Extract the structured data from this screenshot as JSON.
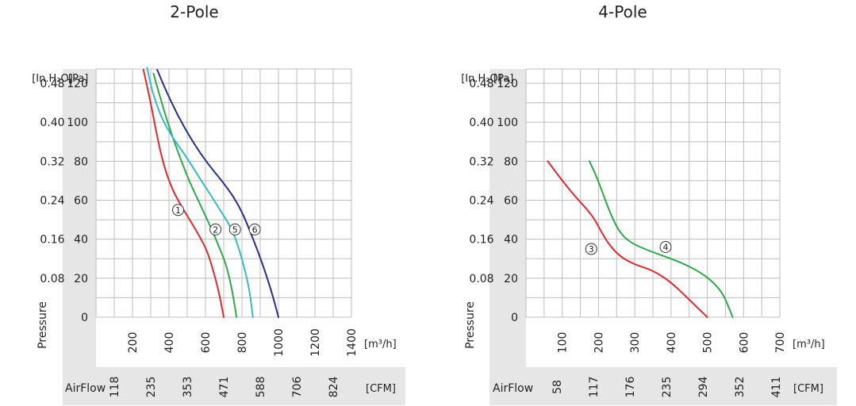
{
  "chart_data": [
    {
      "type": "line",
      "title": "2-Pole",
      "y_inh2o_label": "[In.H₂O]",
      "y_pa_label": "[Pa]",
      "ylabel": "Pressure",
      "x_m3h_unit": "[m³/h]",
      "x_cfm_label": "AirFlow",
      "x_cfm_unit": "[CFM]",
      "xlim": [
        0,
        1400
      ],
      "ylim": [
        0,
        130
      ],
      "x_ticks_m3h": [
        "200",
        "400",
        "600",
        "800",
        "1000",
        "1200",
        "1400"
      ],
      "x_ticks_cfm": [
        "118",
        "235",
        "353",
        "471",
        "588",
        "706",
        "824"
      ],
      "y_ticks_pa": [
        "0",
        "20",
        "40",
        "60",
        "80",
        "100",
        "120"
      ],
      "y_ticks_inh2o": [
        "",
        "0.08",
        "0.16",
        "0.24",
        "0.32",
        "0.40",
        "0.48"
      ],
      "grid": true,
      "series": [
        {
          "marker": "①",
          "color": "#e0282e",
          "label_at": [
            450,
            55
          ],
          "x": [
            260,
            300,
            330,
            370,
            420,
            480,
            540,
            600,
            630,
            660,
            680,
            700
          ],
          "y": [
            127,
            110,
            95,
            78,
            65,
            55,
            46,
            36,
            28,
            18,
            10,
            0
          ]
        },
        {
          "marker": "②",
          "color": "#2ea84a",
          "label_at": [
            655,
            45
          ],
          "x": [
            315,
            360,
            410,
            460,
            510,
            560,
            620,
            680,
            720,
            750,
            770
          ],
          "y": [
            125,
            110,
            95,
            82,
            70,
            60,
            48,
            35,
            25,
            12,
            0
          ]
        },
        {
          "marker": "⑤",
          "color": "#33bdbd",
          "label_at": [
            762,
            45
          ],
          "x": [
            280,
            310,
            360,
            420,
            490,
            570,
            640,
            700,
            740,
            770,
            800,
            840,
            860
          ],
          "y": [
            128,
            115,
            102,
            92,
            83,
            71,
            61,
            52,
            46,
            39,
            30,
            15,
            0
          ]
        },
        {
          "marker": "⑥",
          "color": "#2a2f86",
          "label_at": [
            870,
            45
          ],
          "x": [
            335,
            380,
            450,
            530,
            610,
            690,
            760,
            810,
            840,
            870,
            910,
            960,
            1000
          ],
          "y": [
            127,
            117,
            103,
            90,
            79,
            70,
            61,
            52,
            45,
            38,
            28,
            14,
            0
          ]
        }
      ]
    },
    {
      "type": "line",
      "title": "4-Pole",
      "y_inh2o_label": "[In.H₂O]",
      "y_pa_label": "[Pa]",
      "ylabel": "Pressure",
      "x_m3h_unit": "[m³/h]",
      "x_cfm_label": "AirFlow",
      "x_cfm_unit": "[CFM]",
      "xlim": [
        0,
        700
      ],
      "ylim": [
        0,
        130
      ],
      "x_ticks_m3h": [
        "100",
        "200",
        "300",
        "400",
        "500",
        "600",
        "700"
      ],
      "x_ticks_cfm": [
        "58",
        "117",
        "176",
        "235",
        "294",
        "352",
        "411"
      ],
      "y_ticks_pa": [
        "0",
        "20",
        "40",
        "60",
        "80",
        "100",
        "120"
      ],
      "y_ticks_inh2o": [
        "",
        "0.08",
        "0.16",
        "0.24",
        "0.32",
        "0.40",
        "0.48"
      ],
      "grid": true,
      "series": [
        {
          "marker": "③",
          "color": "#e0282e",
          "label_at": [
            180,
            35
          ],
          "x": [
            60,
            100,
            140,
            170,
            190,
            210,
            230,
            260,
            300,
            350,
            400,
            450,
            500
          ],
          "y": [
            80,
            70,
            61,
            55,
            50,
            43,
            37,
            31,
            27,
            24,
            18,
            9,
            0
          ]
        },
        {
          "marker": "④",
          "color": "#2ea84a",
          "label_at": [
            385,
            36
          ],
          "x": [
            175,
            195,
            215,
            235,
            260,
            290,
            340,
            400,
            440,
            480,
            510,
            540,
            555,
            570
          ],
          "y": [
            80,
            72,
            62,
            52,
            43,
            38,
            34,
            30,
            27,
            23,
            19,
            13,
            7,
            0
          ]
        }
      ]
    }
  ]
}
